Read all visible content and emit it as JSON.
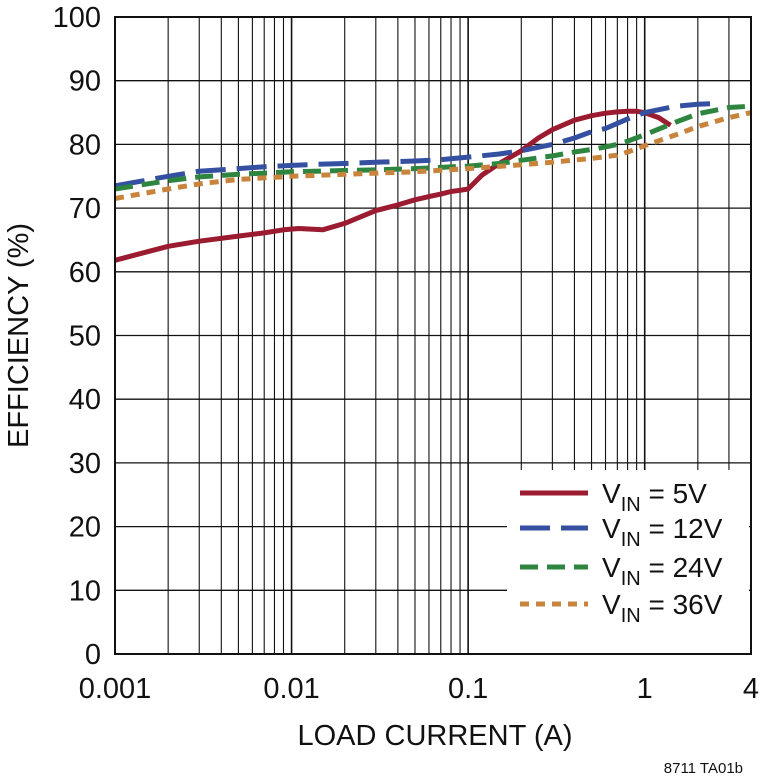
{
  "chart_data": {
    "type": "line",
    "xlabel": "LOAD CURRENT (A)",
    "ylabel": "EFFICIENCY (%)",
    "x_scale": "log",
    "xlim": [
      0.001,
      4
    ],
    "ylim": [
      0,
      100
    ],
    "x_ticks": [
      {
        "value": 0.001,
        "label": "0.001"
      },
      {
        "value": 0.01,
        "label": "0.01"
      },
      {
        "value": 0.1,
        "label": "0.1"
      },
      {
        "value": 1,
        "label": "1"
      },
      {
        "value": 4,
        "label": "4"
      }
    ],
    "y_ticks": [
      0,
      10,
      20,
      30,
      40,
      50,
      60,
      70,
      80,
      90,
      100
    ],
    "grid": true,
    "legend_position": "bottom-right",
    "footnote": "8711 TA01b",
    "series": [
      {
        "name_prefix": "V",
        "name_sub": "IN",
        "name_suffix": " = 5V",
        "color": "#9b1b30",
        "dash": "solid",
        "x": [
          0.001,
          0.002,
          0.003,
          0.005,
          0.007,
          0.009,
          0.011,
          0.015,
          0.02,
          0.03,
          0.04,
          0.05,
          0.06,
          0.07,
          0.08,
          0.09,
          0.1,
          0.12,
          0.15,
          0.2,
          0.25,
          0.3,
          0.4,
          0.5,
          0.6,
          0.7,
          0.8,
          0.9,
          1.0,
          1.2,
          1.4
        ],
        "y": [
          61.8,
          64.0,
          64.8,
          65.6,
          66.1,
          66.6,
          66.8,
          66.6,
          67.6,
          69.6,
          70.5,
          71.3,
          71.8,
          72.2,
          72.6,
          72.8,
          73.0,
          75.2,
          77.0,
          79.0,
          81.0,
          82.3,
          83.8,
          84.5,
          84.9,
          85.1,
          85.2,
          85.2,
          85.0,
          84.2,
          83.0
        ]
      },
      {
        "name_prefix": "V",
        "name_sub": "IN",
        "name_suffix": " = 12V",
        "color": "#3550a0",
        "dash": "long",
        "x": [
          0.001,
          0.002,
          0.003,
          0.005,
          0.007,
          0.01,
          0.015,
          0.02,
          0.03,
          0.04,
          0.05,
          0.07,
          0.1,
          0.15,
          0.2,
          0.3,
          0.4,
          0.5,
          0.6,
          0.8,
          1.0,
          1.5,
          2.0,
          2.5
        ],
        "y": [
          73.5,
          75.0,
          75.8,
          76.2,
          76.5,
          76.7,
          76.9,
          77.0,
          77.2,
          77.3,
          77.4,
          77.6,
          78.0,
          78.5,
          79.0,
          80.0,
          81.0,
          82.0,
          82.5,
          84.0,
          85.0,
          86.0,
          86.3,
          86.4
        ]
      },
      {
        "name_prefix": "V",
        "name_sub": "IN",
        "name_suffix": " = 24V",
        "color": "#2e8540",
        "dash": "medium",
        "x": [
          0.001,
          0.002,
          0.003,
          0.005,
          0.01,
          0.02,
          0.03,
          0.05,
          0.1,
          0.15,
          0.2,
          0.3,
          0.4,
          0.5,
          0.6,
          0.7,
          0.8,
          1.0,
          1.5,
          2.0,
          3.0,
          4.0
        ],
        "y": [
          73.0,
          74.3,
          74.9,
          75.3,
          75.7,
          75.9,
          76.0,
          76.2,
          76.6,
          77.0,
          77.5,
          78.2,
          78.8,
          79.2,
          79.6,
          80.0,
          80.5,
          81.5,
          83.5,
          84.8,
          85.8,
          86.0
        ]
      },
      {
        "name_prefix": "V",
        "name_sub": "IN",
        "name_suffix": " = 36V",
        "color": "#c8843c",
        "dash": "dotted",
        "x": [
          0.001,
          0.002,
          0.003,
          0.005,
          0.01,
          0.02,
          0.03,
          0.05,
          0.1,
          0.2,
          0.3,
          0.5,
          0.7,
          0.8,
          1.0,
          1.5,
          2.0,
          3.0,
          4.0
        ],
        "y": [
          71.5,
          73.0,
          73.8,
          74.5,
          75.0,
          75.3,
          75.5,
          75.7,
          76.2,
          76.8,
          77.2,
          77.8,
          78.3,
          78.8,
          79.8,
          81.5,
          82.8,
          84.2,
          85.0
        ]
      }
    ]
  }
}
